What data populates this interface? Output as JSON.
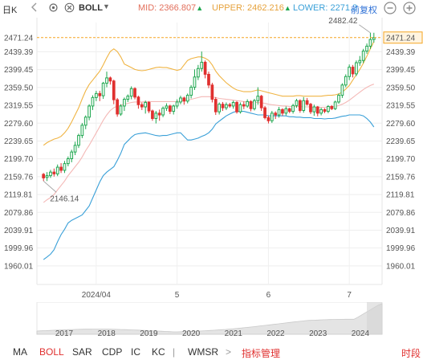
{
  "topbar": {
    "period": "日K",
    "indicator": "BOLL",
    "mid_label": "MID:",
    "mid_value": "2366.807",
    "upper_label": "UPPER:",
    "upper_value": "2462.216",
    "lower_label": "LOWER:",
    "lower_value": "2271.3",
    "adjust": "前复权",
    "up_arrow": "▲",
    "icons": [
      "chevron-icon",
      "gear-icon",
      "close-icon",
      "minus-icon",
      "plus-icon"
    ]
  },
  "chart_data": {
    "type": "candlestick",
    "y_ticks": [
      "2471.24",
      "2439.39",
      "2399.45",
      "2359.50",
      "2319.55",
      "2279.60",
      "2239.65",
      "2199.70",
      "2159.76",
      "2119.81",
      "2079.86",
      "2039.91",
      "1999.96",
      "1960.01"
    ],
    "ylim": [
      1940,
      2505
    ],
    "x_labels": [
      "2024/04",
      "5",
      "6",
      "7"
    ],
    "x_label_index": [
      15,
      38,
      64,
      87
    ],
    "current_price": "2471.24",
    "high_label": "2482.42",
    "low_label": "2146.14",
    "candles": [
      [
        2165,
        2157,
        2168,
        2150
      ],
      [
        2158,
        2162,
        2170,
        2150
      ],
      [
        2162,
        2170,
        2175,
        2157
      ],
      [
        2170,
        2166,
        2178,
        2160
      ],
      [
        2166,
        2181,
        2187,
        2161
      ],
      [
        2181,
        2174,
        2190,
        2168
      ],
      [
        2174,
        2189,
        2195,
        2168
      ],
      [
        2189,
        2200,
        2205,
        2183
      ],
      [
        2200,
        2215,
        2220,
        2192
      ],
      [
        2215,
        2230,
        2238,
        2208
      ],
      [
        2230,
        2252,
        2256,
        2224
      ],
      [
        2252,
        2275,
        2280,
        2246
      ],
      [
        2275,
        2293,
        2297,
        2266
      ],
      [
        2293,
        2318,
        2322,
        2286
      ],
      [
        2318,
        2337,
        2342,
        2309
      ],
      [
        2337,
        2346,
        2352,
        2329
      ],
      [
        2346,
        2341,
        2352,
        2329
      ],
      [
        2341,
        2369,
        2372,
        2334
      ],
      [
        2369,
        2381,
        2395,
        2360
      ],
      [
        2381,
        2374,
        2384,
        2366
      ],
      [
        2374,
        2332,
        2377,
        2322
      ],
      [
        2332,
        2300,
        2336,
        2294
      ],
      [
        2300,
        2318,
        2322,
        2296
      ],
      [
        2318,
        2333,
        2337,
        2307
      ],
      [
        2333,
        2340,
        2344,
        2327
      ],
      [
        2340,
        2357,
        2362,
        2333
      ],
      [
        2357,
        2338,
        2360,
        2333
      ],
      [
        2338,
        2321,
        2341,
        2312
      ],
      [
        2321,
        2316,
        2326,
        2309
      ],
      [
        2316,
        2326,
        2330,
        2301
      ],
      [
        2326,
        2307,
        2329,
        2302
      ],
      [
        2307,
        2290,
        2310,
        2285
      ],
      [
        2290,
        2302,
        2307,
        2279
      ],
      [
        2302,
        2298,
        2310,
        2285
      ],
      [
        2298,
        2313,
        2317,
        2293
      ],
      [
        2313,
        2318,
        2324,
        2307
      ],
      [
        2318,
        2306,
        2321,
        2300
      ],
      [
        2306,
        2318,
        2321,
        2299
      ],
      [
        2318,
        2327,
        2333,
        2312
      ],
      [
        2327,
        2336,
        2341,
        2322
      ],
      [
        2336,
        2329,
        2339,
        2321
      ],
      [
        2329,
        2342,
        2346,
        2324
      ],
      [
        2342,
        2360,
        2365,
        2335
      ],
      [
        2360,
        2383,
        2400,
        2354
      ],
      [
        2383,
        2402,
        2410,
        2376
      ],
      [
        2402,
        2416,
        2440,
        2395
      ],
      [
        2416,
        2389,
        2420,
        2380
      ],
      [
        2389,
        2365,
        2395,
        2358
      ],
      [
        2365,
        2333,
        2370,
        2326
      ],
      [
        2333,
        2305,
        2338,
        2298
      ],
      [
        2305,
        2322,
        2326,
        2299
      ],
      [
        2322,
        2314,
        2327,
        2307
      ],
      [
        2314,
        2321,
        2326,
        2309
      ],
      [
        2321,
        2318,
        2325,
        2314
      ],
      [
        2318,
        2326,
        2330,
        2312
      ],
      [
        2326,
        2305,
        2329,
        2301
      ],
      [
        2305,
        2321,
        2326,
        2301
      ],
      [
        2321,
        2318,
        2328,
        2311
      ],
      [
        2318,
        2328,
        2333,
        2314
      ],
      [
        2328,
        2312,
        2331,
        2306
      ],
      [
        2312,
        2330,
        2334,
        2308
      ],
      [
        2330,
        2340,
        2360,
        2321
      ],
      [
        2340,
        2314,
        2343,
        2307
      ],
      [
        2314,
        2292,
        2318,
        2288
      ],
      [
        2292,
        2285,
        2297,
        2279
      ],
      [
        2285,
        2302,
        2307,
        2280
      ],
      [
        2302,
        2298,
        2306,
        2289
      ],
      [
        2298,
        2310,
        2316,
        2292
      ],
      [
        2310,
        2302,
        2313,
        2296
      ],
      [
        2302,
        2312,
        2317,
        2297
      ],
      [
        2312,
        2306,
        2314,
        2302
      ],
      [
        2306,
        2319,
        2323,
        2301
      ],
      [
        2319,
        2330,
        2334,
        2314
      ],
      [
        2330,
        2308,
        2333,
        2303
      ],
      [
        2308,
        2330,
        2338,
        2303
      ],
      [
        2330,
        2322,
        2336,
        2319
      ],
      [
        2322,
        2305,
        2325,
        2300
      ],
      [
        2305,
        2316,
        2321,
        2296
      ],
      [
        2316,
        2302,
        2318,
        2295
      ],
      [
        2302,
        2310,
        2314,
        2297
      ],
      [
        2310,
        2306,
        2313,
        2302
      ],
      [
        2306,
        2317,
        2320,
        2302
      ],
      [
        2317,
        2312,
        2320,
        2309
      ],
      [
        2312,
        2327,
        2330,
        2309
      ],
      [
        2327,
        2342,
        2346,
        2323
      ],
      [
        2342,
        2365,
        2369,
        2336
      ],
      [
        2365,
        2384,
        2389,
        2360
      ],
      [
        2384,
        2405,
        2411,
        2376
      ],
      [
        2405,
        2390,
        2410,
        2382
      ],
      [
        2390,
        2415,
        2420,
        2385
      ],
      [
        2415,
        2420,
        2430,
        2408
      ],
      [
        2420,
        2441,
        2446,
        2414
      ],
      [
        2441,
        2452,
        2458,
        2435
      ],
      [
        2452,
        2467,
        2482,
        2446
      ],
      [
        2467,
        2471,
        2482,
        2460
      ]
    ],
    "upper": [
      2230,
      2236,
      2240,
      2244,
      2246,
      2250,
      2258,
      2268,
      2282,
      2298,
      2314,
      2334,
      2352,
      2366,
      2376,
      2386,
      2396,
      2410,
      2426,
      2440,
      2446,
      2440,
      2428,
      2412,
      2408,
      2404,
      2400,
      2398,
      2397,
      2398,
      2400,
      2402,
      2404,
      2405,
      2404,
      2404,
      2402,
      2400,
      2398,
      2400,
      2410,
      2420,
      2424,
      2426,
      2428,
      2428,
      2425,
      2420,
      2410,
      2396,
      2386,
      2378,
      2370,
      2364,
      2358,
      2354,
      2352,
      2350,
      2350,
      2350,
      2352,
      2354,
      2352,
      2350,
      2348,
      2346,
      2344,
      2342,
      2340,
      2340,
      2340,
      2340,
      2341,
      2341,
      2340,
      2340,
      2340,
      2340,
      2340,
      2340,
      2341,
      2342,
      2342,
      2343,
      2345,
      2349,
      2356,
      2364,
      2376,
      2388,
      2400,
      2414,
      2430,
      2446,
      2462
    ],
    "mid": [
      2102,
      2108,
      2113,
      2120,
      2130,
      2140,
      2150,
      2162,
      2172,
      2182,
      2192,
      2204,
      2218,
      2230,
      2244,
      2258,
      2272,
      2286,
      2298,
      2308,
      2314,
      2318,
      2320,
      2322,
      2324,
      2326,
      2327,
      2327,
      2327,
      2328,
      2328,
      2328,
      2328,
      2328,
      2328,
      2328,
      2328,
      2328,
      2328,
      2329,
      2330,
      2331,
      2333,
      2335,
      2337,
      2339,
      2339,
      2339,
      2338,
      2337,
      2335,
      2334,
      2333,
      2332,
      2331,
      2330,
      2329,
      2328,
      2327,
      2326,
      2326,
      2326,
      2325,
      2324,
      2322,
      2321,
      2320,
      2319,
      2318,
      2318,
      2317,
      2317,
      2317,
      2317,
      2316,
      2316,
      2316,
      2315,
      2315,
      2315,
      2315,
      2316,
      2316,
      2317,
      2319,
      2322,
      2326,
      2331,
      2337,
      2343,
      2349,
      2355,
      2360,
      2364,
      2367
    ],
    "lower": [
      1974,
      1980,
      1986,
      1996,
      2014,
      2030,
      2042,
      2056,
      2062,
      2066,
      2070,
      2074,
      2084,
      2094,
      2112,
      2130,
      2148,
      2162,
      2170,
      2176,
      2182,
      2196,
      2212,
      2232,
      2240,
      2248,
      2254,
      2256,
      2257,
      2258,
      2256,
      2254,
      2252,
      2251,
      2252,
      2252,
      2254,
      2256,
      2258,
      2258,
      2250,
      2242,
      2242,
      2244,
      2246,
      2250,
      2253,
      2258,
      2266,
      2278,
      2284,
      2290,
      2296,
      2300,
      2304,
      2306,
      2306,
      2306,
      2304,
      2302,
      2300,
      2298,
      2298,
      2298,
      2296,
      2296,
      2296,
      2296,
      2296,
      2296,
      2294,
      2294,
      2293,
      2293,
      2292,
      2292,
      2292,
      2290,
      2290,
      2290,
      2289,
      2290,
      2290,
      2291,
      2293,
      2295,
      2296,
      2298,
      2298,
      2298,
      2298,
      2296,
      2290,
      2282,
      2271
    ]
  },
  "navigator": {
    "years": [
      "2017",
      "2018",
      "2019",
      "2020",
      "2021",
      "2022",
      "2023",
      "2024"
    ]
  },
  "tabs": {
    "items": [
      "MA",
      "BOLL",
      "SAR",
      "CDP",
      "IC",
      "KC",
      "WMSR"
    ],
    "more": ">",
    "manage": "指标管理",
    "period": "时段"
  },
  "colors": {
    "up": "#e0302f",
    "down": "#1ea74f",
    "mid": "#f4b8b6",
    "upper": "#f0b443",
    "lower": "#3aa0d8"
  }
}
